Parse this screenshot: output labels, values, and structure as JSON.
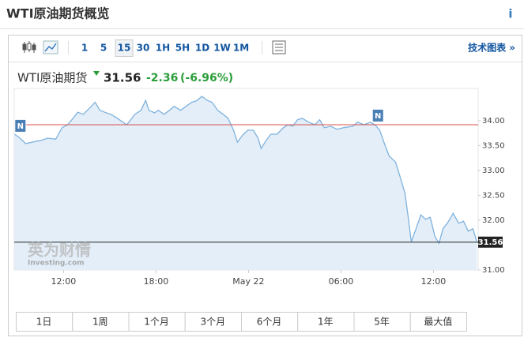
{
  "header": {
    "title": "WTI原油期货概览",
    "info": "i"
  },
  "toolbar": {
    "intervals": [
      "1",
      "5",
      "15",
      "30",
      "1H",
      "5H",
      "1D",
      "1W",
      "1M"
    ],
    "active_interval": 2,
    "tech_chart_link": "技术图表 »"
  },
  "quote": {
    "name": "WTI原油期货",
    "price": 31.56,
    "change": -2.36,
    "change_pct": "(-6.96%)"
  },
  "watermark": {
    "brand": "英为财情",
    "site": "Investing.com"
  },
  "ranges": [
    "1日",
    "1周",
    "1个月",
    "3个月",
    "6个月",
    "1年",
    "5年",
    "最大值"
  ],
  "chart_data": {
    "type": "area",
    "color": "#7fb2dd",
    "fill": "#e3eef8",
    "x": [
      8.82,
      9.18,
      9.54,
      9.95,
      10.46,
      10.97,
      11.49,
      11.9,
      12.26,
      12.62,
      12.92,
      13.28,
      13.64,
      14.05,
      14.36,
      14.67,
      15.08,
      15.49,
      15.85,
      16.1,
      16.36,
      16.62,
      17.03,
      17.33,
      17.54,
      17.9,
      18.15,
      18.51,
      18.87,
      19.18,
      19.59,
      19.95,
      20.31,
      20.62,
      20.97,
      21.33,
      21.64,
      22.0,
      22.36,
      22.67,
      23.03,
      23.28,
      23.59,
      23.95,
      24.31,
      24.62,
      24.82,
      25.13,
      25.44,
      25.85,
      26.26,
      26.56,
      26.87,
      27.18,
      27.49,
      27.9,
      28.31,
      28.62,
      28.92,
      29.33,
      29.74,
      30.15,
      30.77,
      31.08,
      31.49,
      31.9,
      32.21,
      32.51,
      32.82,
      33.13,
      33.54,
      33.85,
      34.15,
      34.36,
      34.56,
      34.87,
      35.18,
      35.49,
      35.79,
      36.1,
      36.36,
      36.62,
      36.92,
      37.28,
      37.64,
      37.95,
      38.26,
      38.56,
      38.82
    ],
    "values": [
      33.73,
      33.65,
      33.54,
      33.57,
      33.6,
      33.65,
      33.63,
      33.86,
      33.92,
      34.05,
      34.17,
      34.13,
      34.24,
      34.37,
      34.21,
      34.17,
      34.13,
      34.05,
      33.97,
      33.92,
      34.02,
      34.13,
      34.21,
      34.41,
      34.21,
      34.16,
      34.21,
      34.13,
      34.21,
      34.29,
      34.21,
      34.29,
      34.37,
      34.4,
      34.49,
      34.41,
      34.37,
      34.21,
      34.13,
      34.05,
      33.81,
      33.57,
      33.7,
      33.81,
      33.81,
      33.65,
      33.44,
      33.6,
      33.73,
      33.73,
      33.86,
      33.92,
      33.89,
      34.02,
      34.05,
      33.97,
      33.92,
      34.02,
      33.86,
      33.89,
      33.83,
      33.86,
      33.89,
      33.97,
      33.92,
      33.97,
      33.92,
      33.81,
      33.54,
      33.29,
      33.17,
      32.86,
      32.54,
      32.06,
      31.57,
      31.83,
      32.11,
      32.02,
      32.06,
      31.67,
      31.54,
      31.83,
      31.95,
      32.14,
      31.94,
      31.98,
      31.78,
      31.83,
      31.56
    ],
    "xlim": [
      8.8,
      38.9
    ],
    "ylim": [
      31.0,
      34.65
    ],
    "xticks": [
      {
        "value": 12,
        "label": "12:00"
      },
      {
        "value": 18,
        "label": "18:00"
      },
      {
        "value": 24,
        "label": "May 22"
      },
      {
        "value": 30,
        "label": "06:00"
      },
      {
        "value": 36,
        "label": "12:00"
      }
    ],
    "yticks": [
      {
        "value": 31,
        "label": "31.00"
      },
      {
        "value": 32,
        "label": "32.00"
      },
      {
        "value": 32.5,
        "label": "32.50"
      },
      {
        "value": 33,
        "label": "33.00"
      },
      {
        "value": 33.5,
        "label": "33.50"
      },
      {
        "value": 34,
        "label": "34.00"
      }
    ],
    "reference_line": {
      "value": 33.92,
      "color": "#d9534f"
    },
    "annotations": [
      {
        "x": 9.2,
        "text": "N"
      },
      {
        "x": 32.4,
        "text": "N"
      }
    ]
  }
}
